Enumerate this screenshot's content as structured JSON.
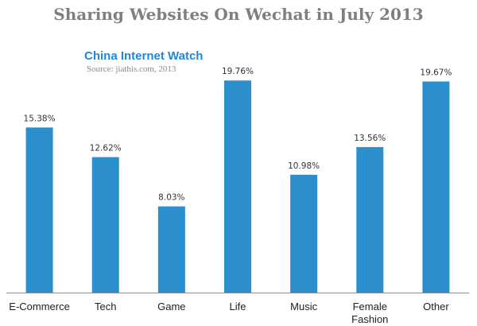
{
  "header": {
    "title": "Sharing Websites On Wechat in July 2013",
    "brand": "China Internet Watch",
    "source": "Source: jiathis.com,  2013"
  },
  "colors": {
    "bar": "#2b8fce",
    "axis": "#8c8c8c",
    "title": "#7f7f7f",
    "brand": "#1e88d6"
  },
  "chart_data": {
    "type": "bar",
    "title": "Sharing Websites On Wechat in July 2013",
    "xlabel": "",
    "ylabel": "",
    "categories": [
      "E-Commerce",
      "Tech",
      "Game",
      "Life",
      "Music",
      "Female Fashion",
      "Other"
    ],
    "category_lines": [
      [
        "E-Commerce"
      ],
      [
        "Tech"
      ],
      [
        "Game"
      ],
      [
        "Life"
      ],
      [
        "Music"
      ],
      [
        "Female",
        "Fashion"
      ],
      [
        "Other"
      ]
    ],
    "values": [
      15.38,
      12.62,
      8.03,
      19.76,
      10.98,
      13.56,
      19.67
    ],
    "value_labels": [
      "15.38%",
      "12.62%",
      "8.03%",
      "19.76%",
      "10.98%",
      "13.56%",
      "19.67%"
    ],
    "ylim": [
      0,
      20
    ],
    "grid": false,
    "legend": "none"
  }
}
